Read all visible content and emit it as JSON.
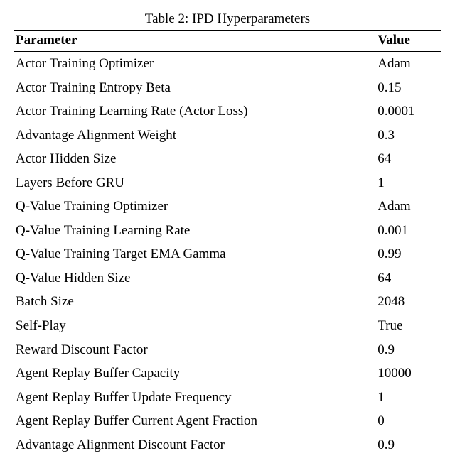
{
  "table": {
    "caption": "Table 2: IPD Hyperparameters",
    "header": {
      "param": "Parameter",
      "value": "Value"
    },
    "rows": [
      {
        "param": "Actor Training Optimizer",
        "value": "Adam"
      },
      {
        "param": "Actor Training Entropy Beta",
        "value": "0.15"
      },
      {
        "param": "Actor Training Learning Rate (Actor Loss)",
        "value": "0.0001"
      },
      {
        "param": "Advantage Alignment Weight",
        "value": "0.3"
      },
      {
        "param": "Actor Hidden Size",
        "value": "64"
      },
      {
        "param": "Layers Before GRU",
        "value": "1"
      },
      {
        "param": "Q-Value Training Optimizer",
        "value": "Adam"
      },
      {
        "param": "Q-Value Training Learning Rate",
        "value": "0.001"
      },
      {
        "param": "Q-Value Training Target EMA Gamma",
        "value": "0.99"
      },
      {
        "param": "Q-Value Hidden Size",
        "value": "64"
      },
      {
        "param": "Batch Size",
        "value": "2048"
      },
      {
        "param": "Self-Play",
        "value": "True"
      },
      {
        "param": "Reward Discount Factor",
        "value": "0.9"
      },
      {
        "param": "Agent Replay Buffer Capacity",
        "value": "10000"
      },
      {
        "param": "Agent Replay Buffer Update Frequency",
        "value": "1"
      },
      {
        "param": "Agent Replay Buffer Current Agent Fraction",
        "value": "0"
      },
      {
        "param": "Advantage Alignment Discount Factor",
        "value": "0.9"
      }
    ],
    "styles": {
      "caption_fontsize": 19,
      "body_fontsize": 19,
      "font_family": "Times New Roman",
      "text_color": "#000000",
      "background_color": "#ffffff",
      "rule_color": "#000000"
    }
  }
}
